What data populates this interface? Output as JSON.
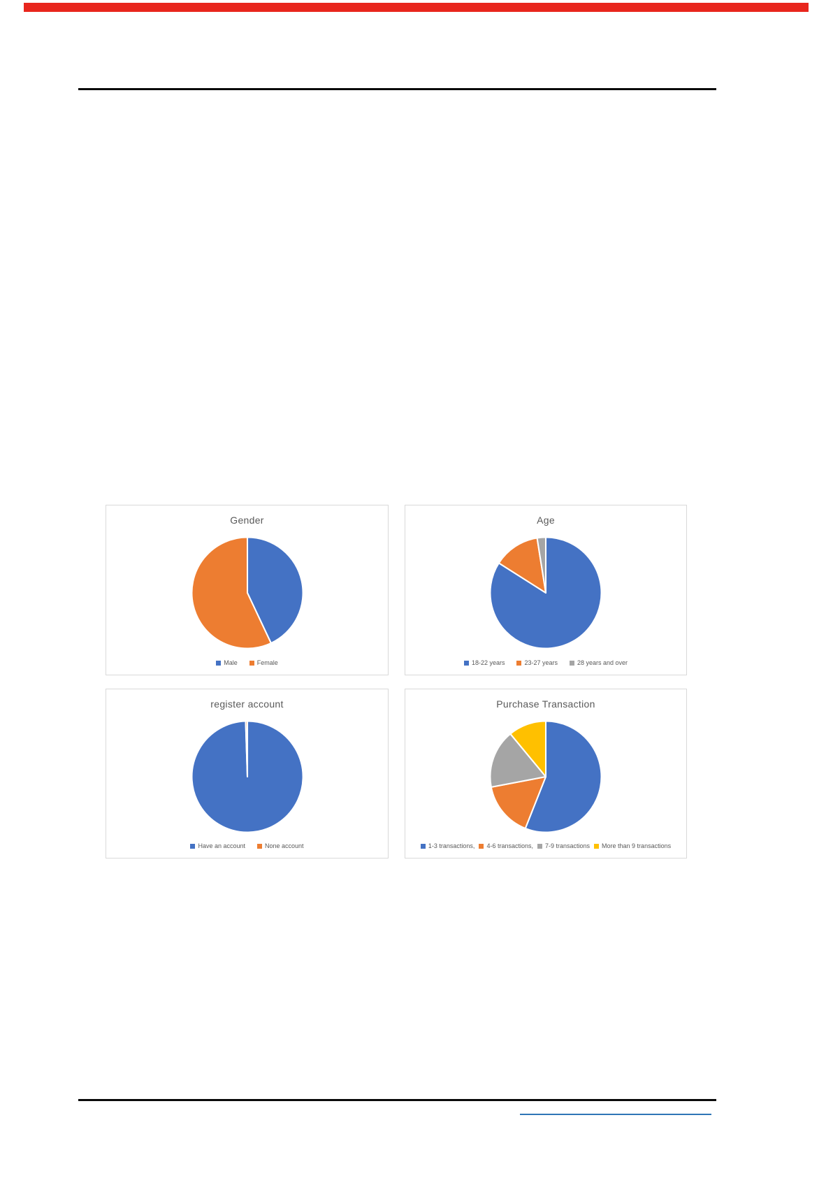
{
  "page": {
    "top_bar_color": "#e8261d",
    "rule_color": "#0a0a0a",
    "link_underline_color": "#2e75b6",
    "card_border_color": "#d9d9d9",
    "title_color": "#595959",
    "legend_text_color": "#595959"
  },
  "chart_data": [
    {
      "type": "pie",
      "title": "Gender",
      "legend_position": "bottom",
      "start_angle": 0,
      "slices": [
        {
          "label": "Male",
          "value": 43,
          "color": "#4472C4"
        },
        {
          "label": "Female",
          "value": 57,
          "color": "#ED7D31"
        }
      ]
    },
    {
      "type": "pie",
      "title": "Age",
      "legend_position": "bottom",
      "start_angle": 0,
      "slices": [
        {
          "label": "18-22 years",
          "value": 84,
          "color": "#4472C4"
        },
        {
          "label": "23-27 years",
          "value": 13.5,
          "color": "#ED7D31"
        },
        {
          "label": "28 years and over",
          "value": 2.5,
          "color": "#A5A5A5"
        }
      ]
    },
    {
      "type": "pie",
      "title": "register account",
      "legend_position": "bottom",
      "start_angle": 0,
      "slices": [
        {
          "label": "Have an account",
          "value": 99.5,
          "color": "#4472C4"
        },
        {
          "label": "None account",
          "value": 0.5,
          "color": "#ED7D31"
        }
      ]
    },
    {
      "type": "pie",
      "title": "Purchase Transaction",
      "legend_position": "bottom",
      "start_angle": 0,
      "slices": [
        {
          "label": "1-3 transactions,",
          "value": 56,
          "color": "#4472C4"
        },
        {
          "label": "4-6 transactions,",
          "value": 16,
          "color": "#ED7D31"
        },
        {
          "label": "7-9 transactions",
          "value": 17,
          "color": "#A5A5A5"
        },
        {
          "label": "More than 9 transactions",
          "value": 11,
          "color": "#FFC000"
        }
      ]
    }
  ]
}
